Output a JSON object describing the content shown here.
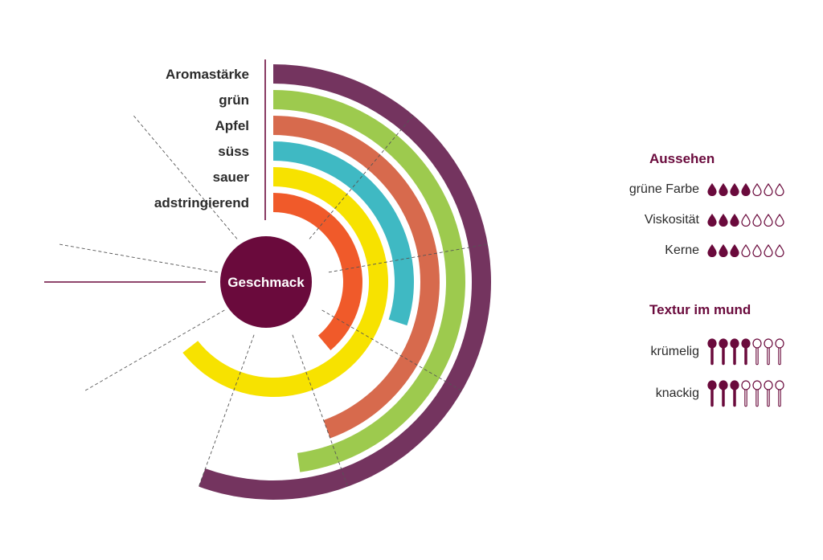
{
  "chart_data": {
    "type": "radial-bar",
    "center_label": "Geschmack",
    "categories": [
      "Aromastärke",
      "grün",
      "Apfel",
      "süss",
      "sauer",
      "adstringierend"
    ],
    "values": [
      5,
      4.3,
      4,
      2.7,
      5.8,
      3.5
    ],
    "max": 9,
    "start": "top",
    "direction": "clockwise",
    "colors": [
      "#74345f",
      "#9dca4e",
      "#d76a4d",
      "#3fb9c3",
      "#f7e200",
      "#f05a2a"
    ]
  },
  "side_panel": {
    "aussehen": {
      "title": "Aussehen",
      "rows": [
        {
          "label": "grüne Farbe",
          "value": 4,
          "max": 7
        },
        {
          "label": "Viskosität",
          "value": 3,
          "max": 7
        },
        {
          "label": "Kerne",
          "value": 3,
          "max": 7
        }
      ]
    },
    "textur": {
      "title": "Textur im mund",
      "rows": [
        {
          "label": "krümelig",
          "value": 4,
          "max": 7
        },
        {
          "label": "knackig",
          "value": 3,
          "max": 7
        }
      ]
    },
    "color": "#6a0a3c",
    "drop_icon": "drop-icon",
    "spoon_icon": "spoon-icon"
  }
}
